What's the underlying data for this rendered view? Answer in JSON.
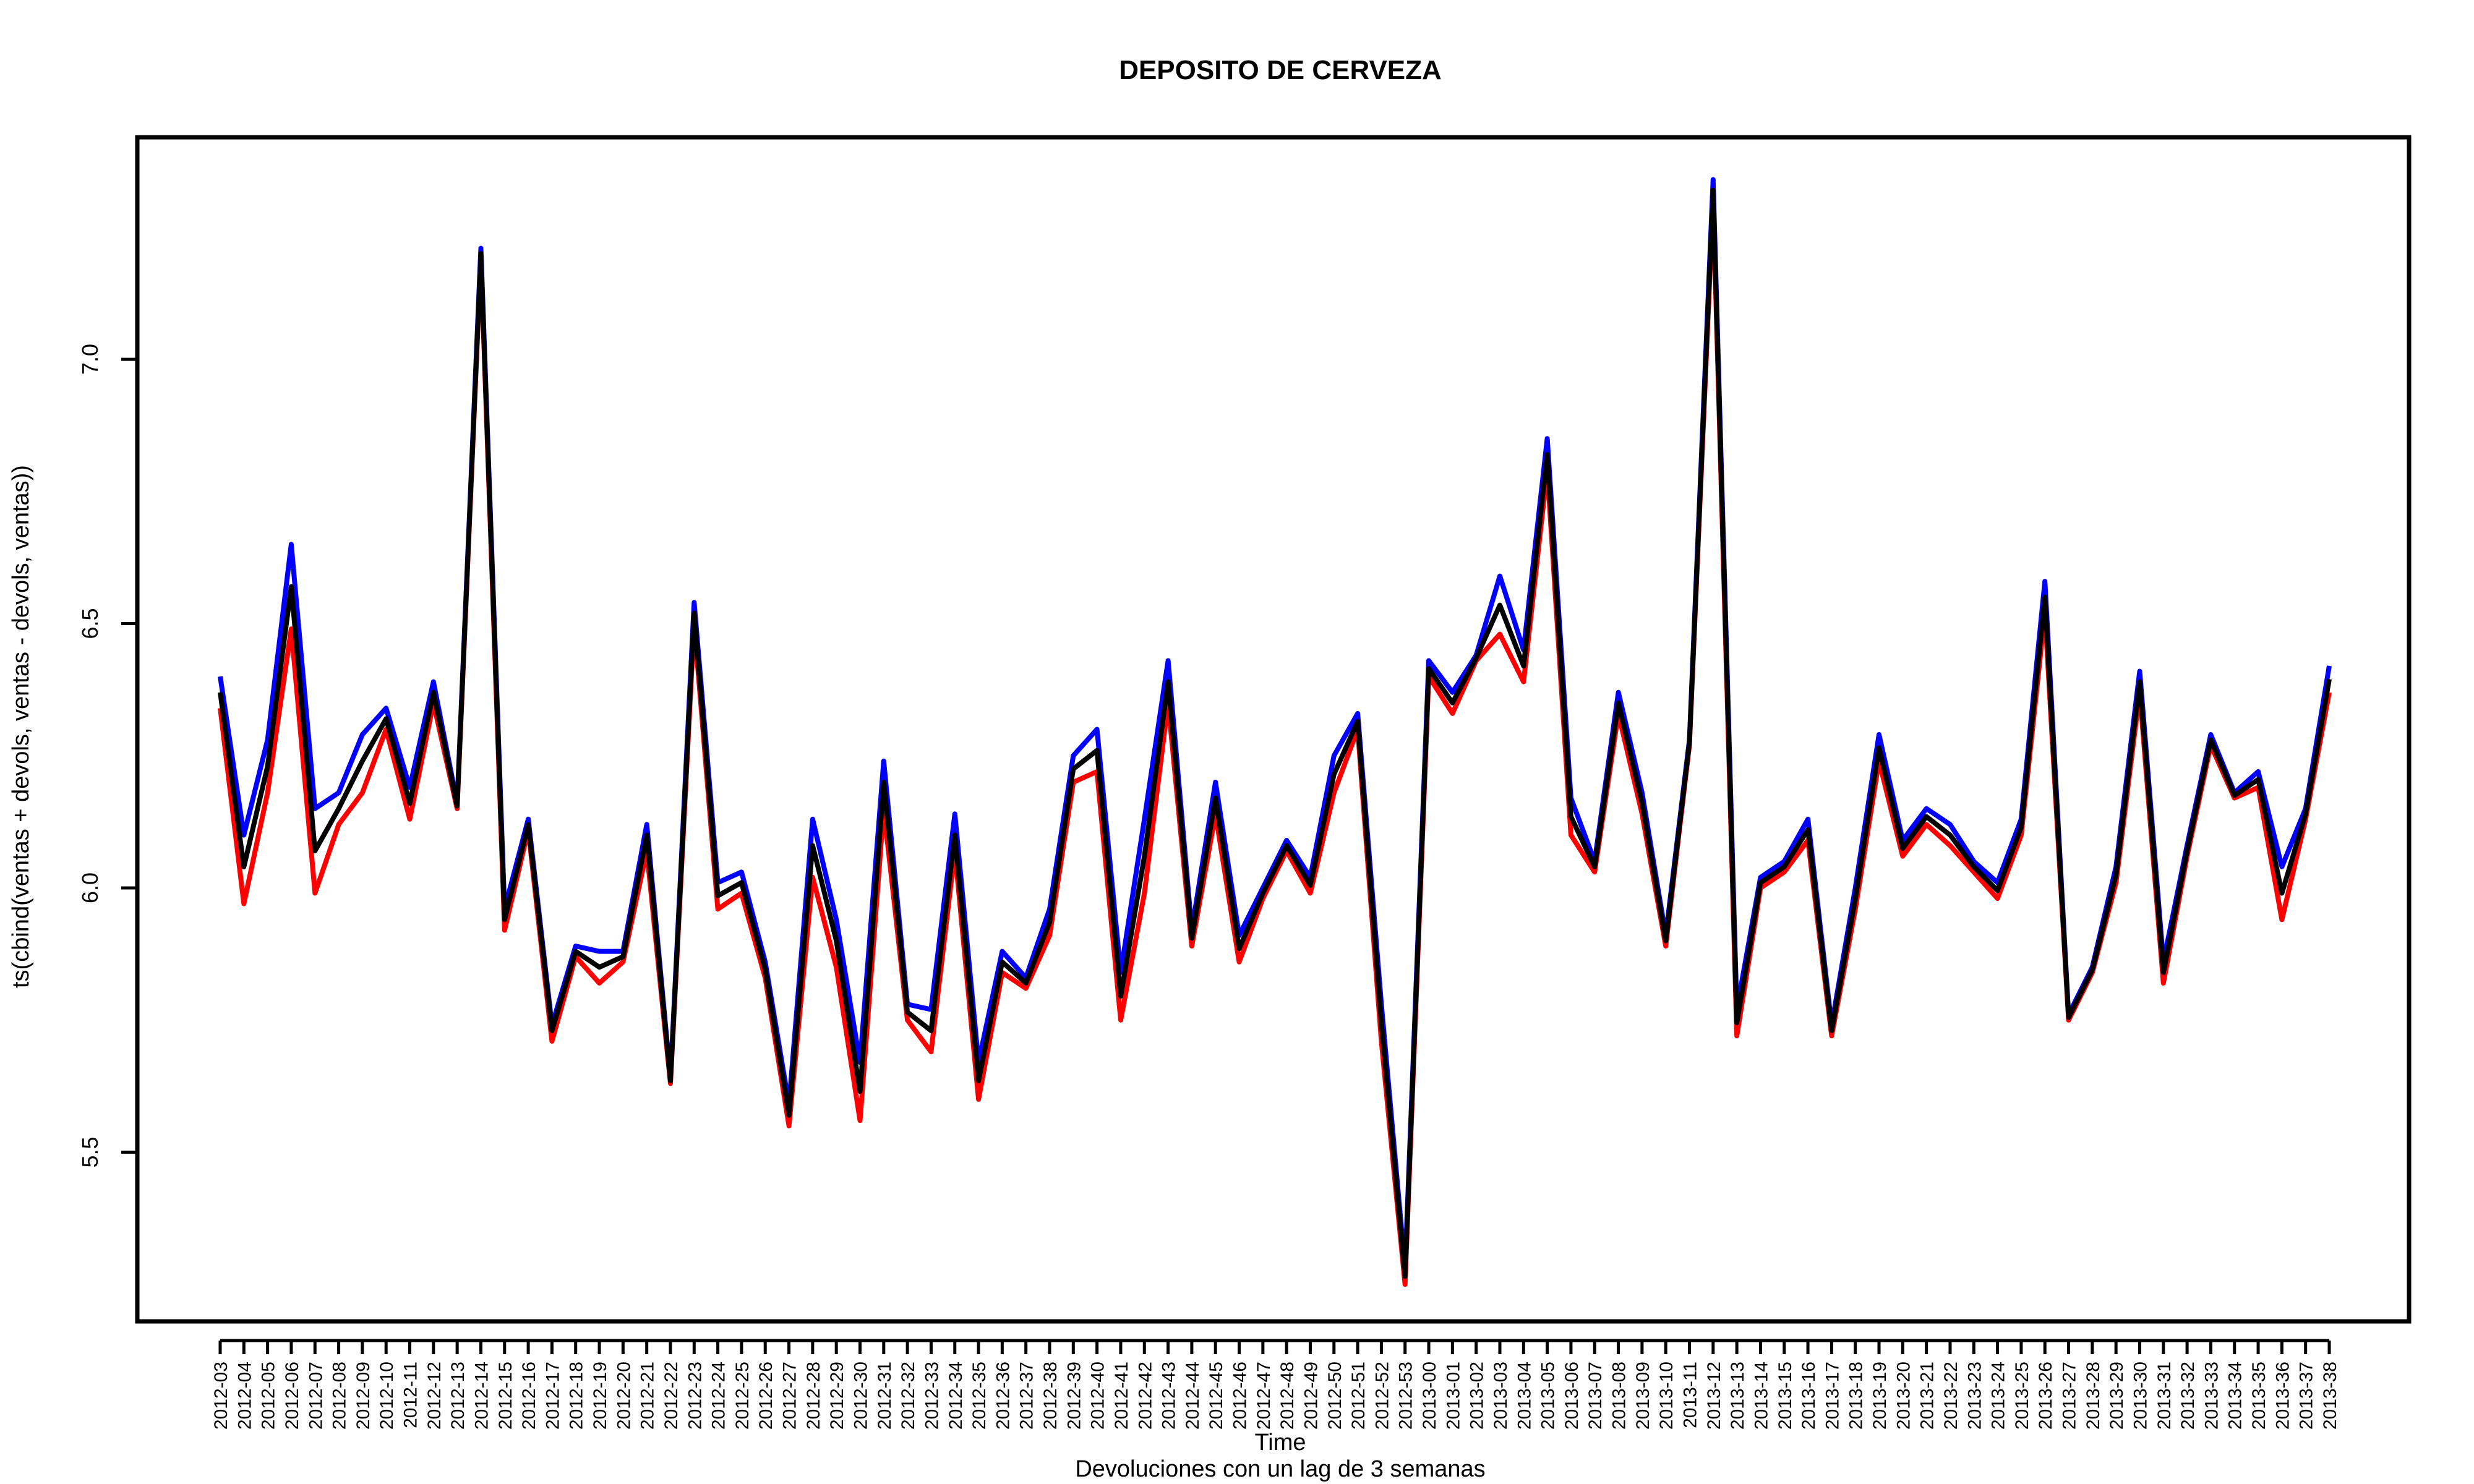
{
  "chart_data": {
    "type": "line",
    "title": "DEPOSITO DE CERVEZA",
    "xlabel": "Time",
    "sublabel": "Devoluciones con un lag de 3 semanas",
    "ylabel": "ts(cbind(ventas + devols, ventas - devols, ventas))",
    "ylim": [
      5.18,
      7.42
    ],
    "y_ticks": [
      5.5,
      6.0,
      6.5,
      7.0
    ],
    "y_tick_labels": [
      "5.5",
      "6.0",
      "6.5",
      "7.0"
    ],
    "grid": false,
    "x": [
      "2012-03",
      "2012-04",
      "2012-05",
      "2012-06",
      "2012-07",
      "2012-08",
      "2012-09",
      "2012-10",
      "2012-11",
      "2012-12",
      "2012-13",
      "2012-14",
      "2012-15",
      "2012-16",
      "2012-17",
      "2012-18",
      "2012-19",
      "2012-20",
      "2012-21",
      "2012-22",
      "2012-23",
      "2012-24",
      "2012-25",
      "2012-26",
      "2012-27",
      "2012-28",
      "2012-29",
      "2012-30",
      "2012-31",
      "2012-32",
      "2012-33",
      "2012-34",
      "2012-35",
      "2012-36",
      "2012-37",
      "2012-38",
      "2012-39",
      "2012-40",
      "2012-41",
      "2012-42",
      "2012-43",
      "2012-44",
      "2012-45",
      "2012-46",
      "2012-47",
      "2012-48",
      "2012-49",
      "2012-50",
      "2012-51",
      "2012-52",
      "2012-53",
      "2013-00",
      "2013-01",
      "2013-02",
      "2013-03",
      "2013-04",
      "2013-05",
      "2013-06",
      "2013-07",
      "2013-08",
      "2013-09",
      "2013-10",
      "2013-11",
      "2013-12",
      "2013-13",
      "2013-14",
      "2013-15",
      "2013-16",
      "2013-17",
      "2013-18",
      "2013-19",
      "2013-20",
      "2013-21",
      "2013-22",
      "2013-23",
      "2013-24",
      "2013-25",
      "2013-26",
      "2013-27",
      "2013-28",
      "2013-29",
      "2013-30",
      "2013-31",
      "2013-32",
      "2013-33",
      "2013-34",
      "2013-35",
      "2013-36",
      "2013-37",
      "2013-38"
    ],
    "series": [
      {
        "color": "#0000ff",
        "values": [
          6.4,
          6.1,
          6.28,
          6.65,
          6.15,
          6.18,
          6.29,
          6.34,
          6.19,
          6.39,
          6.16,
          7.21,
          5.96,
          6.13,
          5.74,
          5.89,
          5.88,
          5.88,
          6.12,
          5.64,
          6.54,
          6.01,
          6.03,
          5.86,
          5.59,
          6.13,
          5.94,
          5.67,
          6.24,
          5.78,
          5.77,
          6.14,
          5.67,
          5.88,
          5.83,
          5.96,
          6.25,
          6.3,
          5.84,
          6.13,
          6.43,
          5.92,
          6.2,
          5.91,
          6.0,
          6.09,
          6.02,
          6.25,
          6.33,
          5.78,
          5.28,
          6.43,
          6.37,
          6.44,
          6.59,
          6.45,
          6.85,
          6.17,
          6.05,
          6.37,
          6.18,
          5.91,
          6.28,
          7.34,
          5.77,
          6.02,
          6.05,
          6.13,
          5.74,
          6.0,
          6.29,
          6.09,
          6.15,
          6.12,
          6.05,
          6.01,
          6.13,
          6.58,
          5.76,
          5.85,
          6.04,
          6.41,
          5.86,
          6.08,
          6.29,
          6.18,
          6.22,
          6.04,
          6.15,
          6.42
        ]
      },
      {
        "color": "#ff0000",
        "values": [
          6.34,
          5.97,
          6.18,
          6.49,
          5.99,
          6.12,
          6.18,
          6.3,
          6.13,
          6.35,
          6.15,
          7.19,
          5.92,
          6.11,
          5.71,
          5.87,
          5.82,
          5.86,
          6.07,
          5.63,
          6.5,
          5.96,
          5.99,
          5.83,
          5.55,
          6.02,
          5.85,
          5.56,
          6.15,
          5.75,
          5.69,
          6.07,
          5.6,
          5.84,
          5.81,
          5.91,
          6.2,
          6.22,
          5.75,
          5.99,
          6.35,
          5.89,
          6.14,
          5.86,
          5.98,
          6.07,
          5.99,
          6.18,
          6.3,
          5.71,
          5.25,
          6.4,
          6.33,
          6.43,
          6.48,
          6.39,
          6.79,
          6.1,
          6.03,
          6.33,
          6.14,
          5.89,
          6.27,
          7.3,
          5.72,
          6.0,
          6.03,
          6.09,
          5.72,
          5.96,
          6.24,
          6.06,
          6.12,
          6.08,
          6.03,
          5.98,
          6.1,
          6.52,
          5.75,
          5.84,
          6.01,
          6.37,
          5.82,
          6.06,
          6.27,
          6.17,
          6.19,
          5.94,
          6.13,
          6.37
        ]
      },
      {
        "color": "#000000",
        "values": [
          6.37,
          6.04,
          6.23,
          6.57,
          6.07,
          6.15,
          6.24,
          6.32,
          6.16,
          6.37,
          6.155,
          7.2,
          5.94,
          6.12,
          5.73,
          5.88,
          5.85,
          5.87,
          6.1,
          5.635,
          6.52,
          5.985,
          6.01,
          5.845,
          5.57,
          6.08,
          5.9,
          5.615,
          6.2,
          5.765,
          5.73,
          6.1,
          5.635,
          5.86,
          5.82,
          5.935,
          6.225,
          6.26,
          5.795,
          6.06,
          6.39,
          5.905,
          6.17,
          5.885,
          5.99,
          6.08,
          6.005,
          6.215,
          6.315,
          5.745,
          5.265,
          6.415,
          6.35,
          6.435,
          6.535,
          6.42,
          6.82,
          6.135,
          6.04,
          6.35,
          6.16,
          5.9,
          6.275,
          7.32,
          5.745,
          6.01,
          6.04,
          6.11,
          5.73,
          5.98,
          6.265,
          6.075,
          6.135,
          6.1,
          6.04,
          5.995,
          6.115,
          6.55,
          5.755,
          5.845,
          6.025,
          6.39,
          5.84,
          6.07,
          6.28,
          6.175,
          6.205,
          5.99,
          6.14,
          6.395
        ]
      }
    ]
  }
}
